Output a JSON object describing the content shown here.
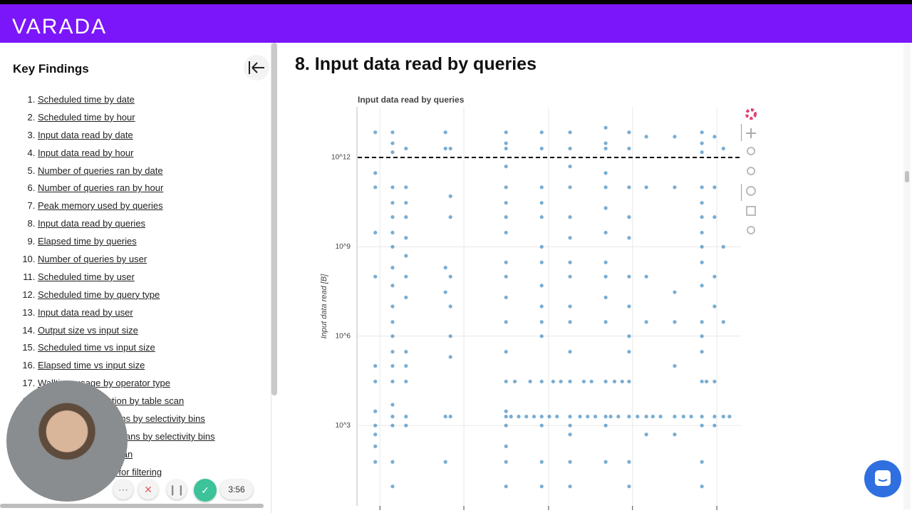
{
  "header": {
    "logo": "VARADA"
  },
  "sidebar": {
    "title": "Key Findings",
    "items": [
      "Scheduled time by date",
      "Scheduled time by hour",
      "Input data read by date",
      "Input data read by hour",
      "Number of queries ran by date",
      "Number of queries ran by hour",
      "Peak memory used by queries",
      "Input data read by queries",
      "Elapsed time by queries",
      "Number of queries by user",
      "Scheduled time by user",
      "Scheduled time by query type",
      "Input data read by user",
      "Output size vs input size",
      "Scheduled time vs input size",
      "Elapsed time vs input size",
      "Walltime usage by operator type",
      "Selectivity distribution by table scan",
      "Number of table scans by selectivity bins",
      "Data read by table scans by selectivity bins",
      "Wall time by table scan",
      "Rows read vs rows for filtering"
    ]
  },
  "main": {
    "heading": "8. Input data read by queries"
  },
  "chart_data": {
    "type": "scatter",
    "title": "Input data read by queries",
    "y_label": "Input data read [B]",
    "log_y": true,
    "grid": true,
    "color": "#1f77b4",
    "xlim": [
      0,
      100
    ],
    "xticks": [
      5.8,
      27.7,
      49.8,
      71.7,
      93.7
    ],
    "ylim": [
      2,
      50000000000000.0
    ],
    "yticks": [
      {
        "value": 1000,
        "label": "10^3"
      },
      {
        "value": 1000000,
        "label": "10^6"
      },
      {
        "value": 1000000000,
        "label": "10^9"
      },
      {
        "value": 1000000000000,
        "label": "10^12"
      }
    ],
    "reference_line": 1000000000000,
    "x": [
      4.6,
      4.6,
      4.6,
      4.6,
      4.6,
      4.6,
      4.6,
      4.6,
      4.6,
      4.6,
      4.6,
      4.6,
      9.1,
      9.1,
      9.1,
      9.1,
      9.1,
      9.1,
      9.1,
      9.1,
      9.1,
      9.1,
      9.1,
      9.1,
      9.1,
      9.1,
      9.1,
      9.1,
      9.1,
      9.1,
      9.1,
      9.1,
      9.1,
      12.6,
      12.6,
      12.6,
      12.6,
      12.6,
      12.6,
      12.6,
      12.6,
      12.6,
      12.6,
      12.6,
      12.6,
      12.6,
      22.9,
      22.9,
      22.9,
      22.9,
      22.9,
      22.9,
      24.2,
      24.2,
      24.2,
      24.2,
      24.2,
      24.2,
      24.2,
      24.2,
      38.7,
      38.7,
      38.7,
      38.7,
      38.7,
      38.7,
      38.7,
      38.7,
      38.7,
      38.7,
      38.7,
      38.7,
      38.7,
      38.7,
      38.7,
      38.7,
      38.7,
      38.7,
      38.7,
      38.7,
      48,
      48,
      48,
      48,
      48,
      48,
      48,
      48,
      48,
      48,
      48,
      48,
      48,
      48,
      48,
      48,
      55.4,
      55.4,
      55.4,
      55.4,
      55.4,
      55.4,
      55.4,
      55.4,
      55.4,
      55.4,
      55.4,
      55.4,
      55.4,
      55.4,
      55.4,
      55.4,
      55.4,
      64.7,
      64.7,
      64.7,
      64.7,
      64.7,
      64.7,
      64.7,
      64.7,
      64.7,
      64.7,
      64.7,
      64.7,
      64.7,
      64.7,
      64.7,
      70.8,
      70.8,
      70.8,
      70.8,
      70.8,
      70.8,
      70.8,
      70.8,
      70.8,
      70.8,
      70.8,
      70.8,
      70.8,
      75.3,
      75.3,
      75.3,
      75.3,
      75.3,
      75.3,
      82.7,
      82.7,
      82.7,
      82.7,
      82.7,
      82.7,
      82.7,
      89.8,
      89.8,
      89.8,
      89.8,
      89.8,
      89.8,
      89.8,
      89.8,
      89.8,
      89.8,
      89.8,
      89.8,
      89.8,
      89.8,
      89.8,
      89.8,
      89.8,
      89.8,
      93.1,
      93.1,
      93.1,
      93.1,
      93.1,
      93.1,
      93.1,
      93.1,
      95.4,
      95.4,
      95.4,
      95.4,
      40,
      42,
      44,
      46,
      50,
      52,
      58,
      60,
      62,
      66,
      68,
      73,
      77,
      79,
      85,
      87,
      97,
      41,
      45,
      51,
      53,
      59,
      61,
      67,
      69,
      91
    ],
    "values": [
      7000000000000.0,
      300000000000.0,
      100000000000.0,
      3000000000.0,
      100000000.0,
      100000.0,
      30000.0,
      3000.0,
      1000.0,
      500.0,
      200.0,
      60,
      7000000000000.0,
      3000000000000.0,
      1500000000000.0,
      100000000000.0,
      30000000000.0,
      10000000000.0,
      3000000000.0,
      1000000000.0,
      200000000.0,
      50000000.0,
      10000000.0,
      3000000.0,
      1000000.0,
      300000.0,
      100000.0,
      30000.0,
      5000.0,
      2000.0,
      1000.0,
      60,
      9,
      2000000000000.0,
      100000000000.0,
      30000000000.0,
      10000000000.0,
      2000000000.0,
      500000000.0,
      100000000.0,
      20000000.0,
      300000.0,
      100000.0,
      30000.0,
      2000.0,
      1000.0,
      7000000000000.0,
      2000000000000.0,
      200000000.0,
      30000000.0,
      2000.0,
      60,
      2000000000000.0,
      50000000000.0,
      10000000000.0,
      100000000.0,
      10000000.0,
      1000000.0,
      200000.0,
      2000.0,
      7000000000000.0,
      3000000000000.0,
      2000000000000.0,
      500000000000.0,
      100000000000.0,
      30000000000.0,
      10000000000.0,
      3000000000.0,
      300000000.0,
      100000000.0,
      20000000.0,
      3000000.0,
      300000.0,
      30000.0,
      3000.0,
      2000.0,
      1000.0,
      200.0,
      60,
      9,
      7000000000000.0,
      2000000000000.0,
      100000000000.0,
      30000000000.0,
      10000000000.0,
      1000000000.0,
      300000000.0,
      50000000.0,
      10000000.0,
      3000000.0,
      1000000.0,
      30000.0,
      2000.0,
      1000.0,
      60,
      9,
      7000000000000.0,
      2000000000000.0,
      500000000000.0,
      100000000000.0,
      10000000000.0,
      2000000000.0,
      300000000.0,
      100000000.0,
      10000000.0,
      3000000.0,
      300000.0,
      30000.0,
      2000.0,
      1000.0,
      500.0,
      60,
      9,
      10000000000000.0,
      3000000000000.0,
      2000000000000.0,
      300000000000.0,
      100000000000.0,
      20000000000.0,
      3000000000.0,
      300000000.0,
      100000000.0,
      20000000.0,
      3000000.0,
      30000.0,
      2000.0,
      1000.0,
      60,
      7000000000000.0,
      2000000000000.0,
      100000000000.0,
      10000000000.0,
      2000000000.0,
      100000000.0,
      10000000.0,
      1000000.0,
      300000.0,
      30000.0,
      2000.0,
      60,
      9,
      5000000000000.0,
      100000000000.0,
      100000000.0,
      3000000.0,
      2000.0,
      500.0,
      5000000000000.0,
      100000000000.0,
      30000000.0,
      3000000.0,
      100000.0,
      2000.0,
      500.0,
      7000000000000.0,
      3000000000000.0,
      1500000000000.0,
      100000000000.0,
      30000000000.0,
      10000000000.0,
      3000000000.0,
      1000000000.0,
      300000000.0,
      50000000.0,
      3000000.0,
      1000000.0,
      300000.0,
      30000.0,
      2000.0,
      1000.0,
      60,
      9,
      5000000000000.0,
      100000000000.0,
      10000000000.0,
      100000000.0,
      10000000.0,
      30000.0,
      2000.0,
      1000.0,
      2000000000000.0,
      1000000000.0,
      3000000.0,
      2000.0,
      2000.0,
      2000.0,
      2000.0,
      2000.0,
      2000.0,
      2000.0,
      2000.0,
      2000.0,
      2000.0,
      2000.0,
      2000.0,
      2000.0,
      2000.0,
      2000.0,
      2000.0,
      2000.0,
      2000.0,
      30000.0,
      30000.0,
      30000.0,
      30000.0,
      30000.0,
      30000.0,
      30000.0,
      30000.0,
      30000.0
    ]
  },
  "recorder": {
    "timer": "3:56"
  }
}
